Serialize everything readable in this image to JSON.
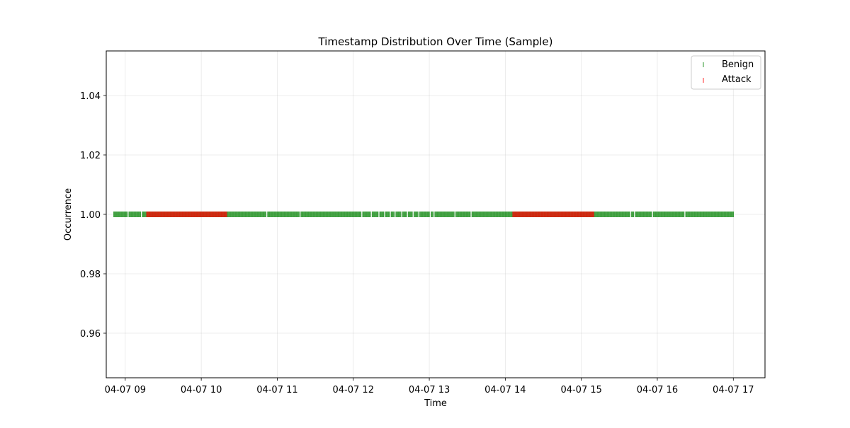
{
  "chart_data": {
    "type": "scatter",
    "title": "Timestamp Distribution Over Time (Sample)",
    "xlabel": "Time",
    "ylabel": "Occurrence",
    "xlim": [
      "2024-04-07 08:45",
      "2024-04-07 17:25"
    ],
    "ylim": [
      0.945,
      1.055
    ],
    "x_ticks": [
      "04-07 09",
      "04-07 10",
      "04-07 11",
      "04-07 12",
      "04-07 13",
      "04-07 14",
      "04-07 15",
      "04-07 16",
      "04-07 17"
    ],
    "y_ticks": [
      "0.96",
      "0.98",
      "1.00",
      "1.02",
      "1.04"
    ],
    "y_tick_values": [
      0.96,
      0.98,
      1.0,
      1.02,
      1.04
    ],
    "grid": true,
    "legend_position": "top-right",
    "series": [
      {
        "name": "Benign",
        "color": "#008000",
        "marker": "vertical-line",
        "y": 1.0,
        "x_ranges": [
          [
            "2024-04-07 08:51",
            "2024-04-07 17:00"
          ]
        ],
        "gaps": [
          "2024-04-07 09:02",
          "2024-04-07 09:13",
          "2024-04-07 10:52",
          "2024-04-07 11:18",
          "2024-04-07 12:07",
          "2024-04-07 12:14",
          "2024-04-07 12:20",
          "2024-04-07 12:25",
          "2024-04-07 12:29",
          "2024-04-07 12:33",
          "2024-04-07 12:38",
          "2024-04-07 12:43",
          "2024-04-07 12:47",
          "2024-04-07 12:52",
          "2024-04-07 13:01",
          "2024-04-07 13:04",
          "2024-04-07 13:20",
          "2024-04-07 13:33",
          "2024-04-07 15:39",
          "2024-04-07 15:42",
          "2024-04-07 15:56",
          "2024-04-07 16:22"
        ]
      },
      {
        "name": "Attack",
        "color": "#ff0000",
        "marker": "vertical-line",
        "y": 1.0,
        "x_ranges": [
          [
            "2024-04-07 09:17",
            "2024-04-07 10:20"
          ],
          [
            "2024-04-07 14:06",
            "2024-04-07 15:10"
          ]
        ]
      }
    ]
  }
}
